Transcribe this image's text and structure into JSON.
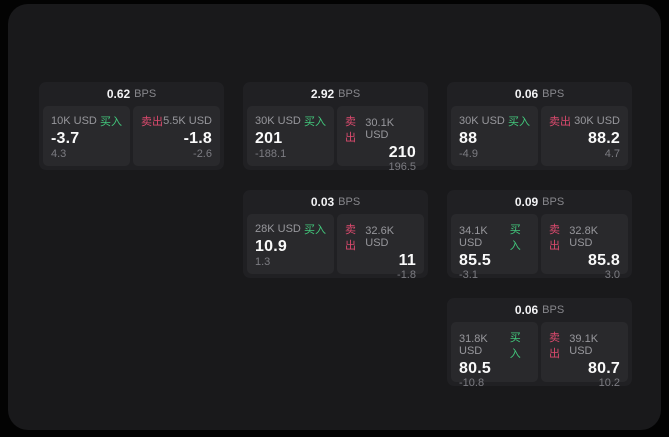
{
  "labels": {
    "bps_unit": "BPS",
    "buy": "买入",
    "sell": "卖出"
  },
  "cards": [
    {
      "bps": "0.62",
      "buy": {
        "amount": "10K USD",
        "price": "-3.7",
        "delta": "4.3"
      },
      "sell": {
        "amount": "5.5K USD",
        "price": "-1.8",
        "delta": "-2.6"
      }
    },
    {
      "bps": "2.92",
      "buy": {
        "amount": "30K USD",
        "price": "201",
        "delta": "-188.1"
      },
      "sell": {
        "amount": "30.1K USD",
        "price": "210",
        "delta": "196.5"
      }
    },
    {
      "bps": "0.06",
      "buy": {
        "amount": "30K USD",
        "price": "88",
        "delta": "-4.9"
      },
      "sell": {
        "amount": "30K USD",
        "price": "88.2",
        "delta": "4.7"
      }
    },
    {
      "bps": "0.03",
      "buy": {
        "amount": "28K USD",
        "price": "10.9",
        "delta": "1.3"
      },
      "sell": {
        "amount": "32.6K USD",
        "price": "11",
        "delta": "-1.8"
      }
    },
    {
      "bps": "0.09",
      "buy": {
        "amount": "34.1K USD",
        "price": "85.5",
        "delta": "-3.1"
      },
      "sell": {
        "amount": "32.8K USD",
        "price": "85.8",
        "delta": "3.0"
      }
    },
    {
      "bps": "0.06",
      "buy": {
        "amount": "31.8K USD",
        "price": "80.5",
        "delta": "-10.8"
      },
      "sell": {
        "amount": "39.1K USD",
        "price": "80.7",
        "delta": "10.2"
      }
    }
  ],
  "colors": {
    "background": "#030303",
    "window_bg": "#19191b",
    "card_bg": "#202023",
    "panel_bg": "#29292c",
    "text_primary": "#fafafa",
    "text_secondary": "#97979c",
    "text_muted": "#7c7c82",
    "buy_green": "#42c87c",
    "sell_red": "#dc4a6e"
  }
}
